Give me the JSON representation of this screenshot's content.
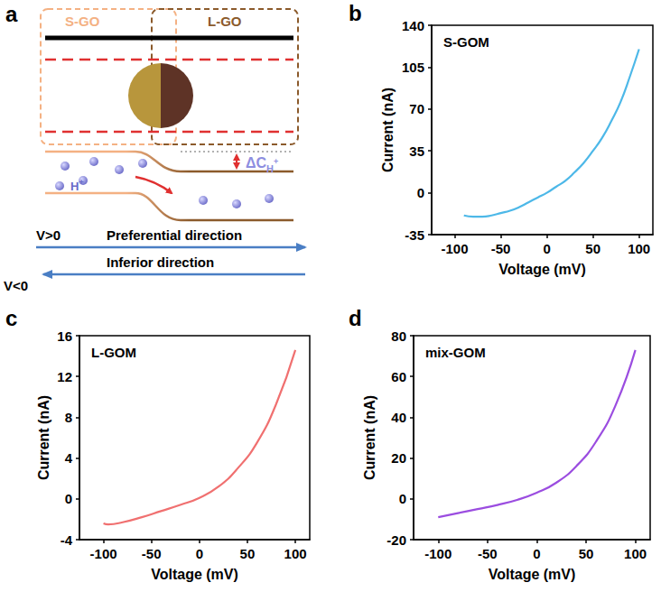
{
  "diagram": {
    "panel": "a",
    "boxes": [
      "S-GO",
      "L-GO"
    ],
    "delta_label": {
      "main": "ΔC",
      "sub": "H",
      "sup": "+"
    },
    "ion_label": {
      "main": "H",
      "sup": "+"
    },
    "directions": [
      {
        "sign": "V>0",
        "text": "Preferential direction"
      },
      {
        "sign": "V<0",
        "text": "Inferior direction"
      }
    ]
  },
  "chart_data": [
    {
      "panel": "b",
      "type": "line",
      "title": "S-GOM",
      "x_label": "Voltage (mV)",
      "y_label": "Current (nA)",
      "color": "#4db8e8",
      "x": [
        -90,
        -80,
        -70,
        -60,
        -50,
        -40,
        -30,
        -20,
        -10,
        0,
        10,
        20,
        30,
        40,
        50,
        60,
        70,
        80,
        90,
        100
      ],
      "values": [
        -19,
        -20,
        -20,
        -19,
        -17,
        -15,
        -12,
        -8,
        -4,
        0,
        5,
        10,
        17,
        25,
        35,
        46,
        60,
        76,
        97,
        120
      ],
      "xlim": [
        -125,
        115
      ],
      "xticks": [
        -100,
        -50,
        0,
        50,
        100
      ],
      "ylim": [
        -35,
        140
      ],
      "yticks": [
        -35,
        0,
        35,
        70,
        105,
        140
      ],
      "grid": false
    },
    {
      "panel": "c",
      "type": "line",
      "title": "L-GOM",
      "x_label": "Voltage (mV)",
      "y_label": "Current (nA)",
      "color": "#f07070",
      "x": [
        -100,
        -95,
        -80,
        -60,
        -40,
        -20,
        0,
        20,
        40,
        60,
        80,
        100
      ],
      "values": [
        -2.4,
        -2.5,
        -2.3,
        -1.8,
        -1.2,
        -0.6,
        0.1,
        1.2,
        3.0,
        5.5,
        9.3,
        14.6
      ],
      "xlim": [
        -125,
        115
      ],
      "xticks": [
        -100,
        -50,
        0,
        50,
        100
      ],
      "ylim": [
        -4,
        16
      ],
      "yticks": [
        -4,
        0,
        4,
        8,
        12,
        16
      ],
      "grid": false
    },
    {
      "panel": "d",
      "type": "line",
      "title": "mix-GOM",
      "x_label": "Voltage (mV)",
      "y_label": "Current (nA)",
      "color": "#9b4de0",
      "x": [
        -100,
        -80,
        -60,
        -40,
        -20,
        0,
        20,
        40,
        60,
        80,
        100
      ],
      "values": [
        -9,
        -7,
        -5,
        -3,
        -0.5,
        3,
        8,
        16,
        28,
        46,
        73
      ],
      "xlim": [
        -125,
        115
      ],
      "xticks": [
        -100,
        -50,
        0,
        50,
        100
      ],
      "ylim": [
        -20,
        80
      ],
      "yticks": [
        -20,
        0,
        20,
        40,
        60,
        80
      ],
      "grid": false
    }
  ]
}
